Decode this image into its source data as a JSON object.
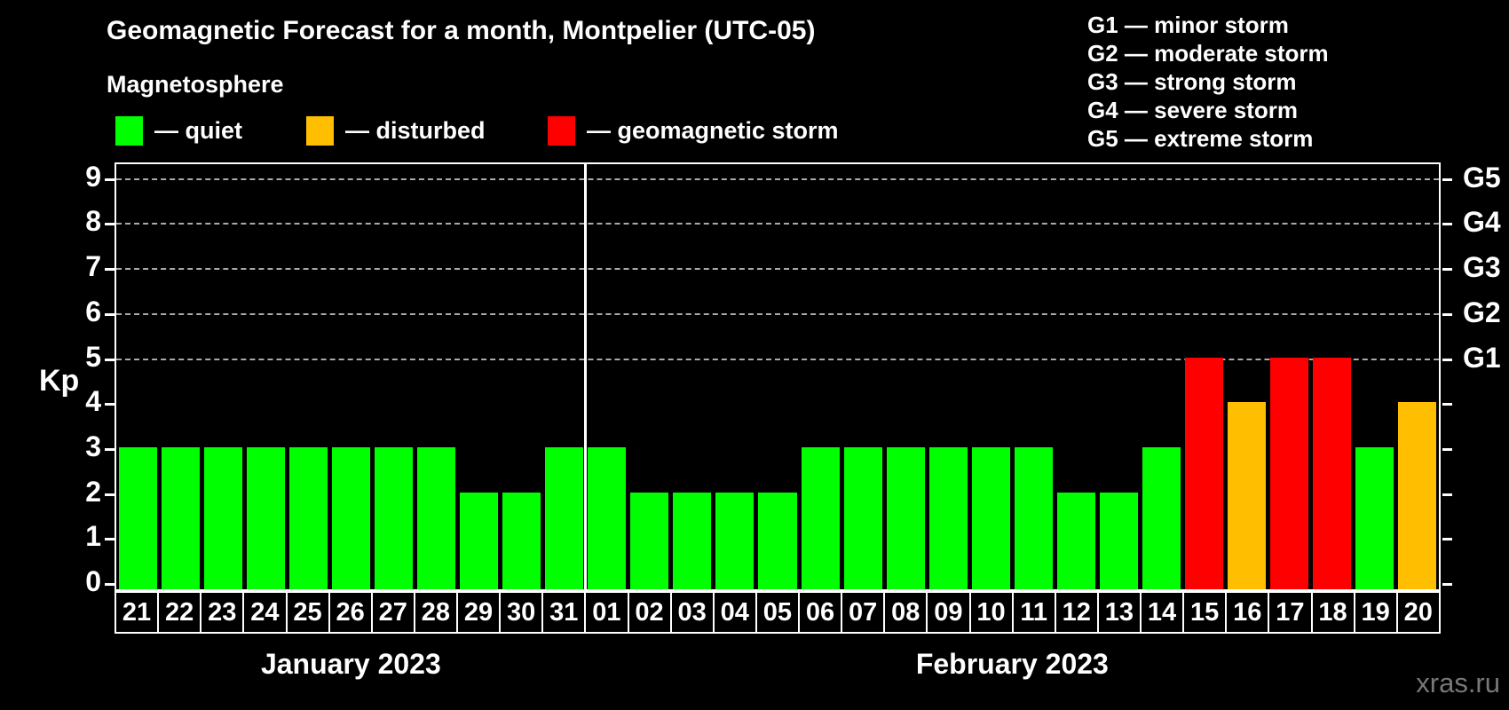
{
  "title": "Geomagnetic Forecast for a month, Montpelier (UTC-05)",
  "subtitle": "Magnetosphere",
  "legend": {
    "items": [
      {
        "key": "quiet",
        "label": "— quiet",
        "color": "#00ff00"
      },
      {
        "key": "disturbed",
        "label": "— disturbed",
        "color": "#ffbf00"
      },
      {
        "key": "storm",
        "label": "— geomagnetic storm",
        "color": "#ff0000"
      }
    ]
  },
  "g_legend": [
    "G1 — minor storm",
    "G2 — moderate storm",
    "G3 — strong storm",
    "G4 — severe storm",
    "G5 — extreme storm"
  ],
  "watermark": "xras.ru",
  "chart_data": {
    "type": "bar",
    "title": "Geomagnetic Forecast for a month, Montpelier (UTC-05)",
    "ylabel": "Kp",
    "ylim": [
      0,
      9
    ],
    "yticks": [
      0,
      1,
      2,
      3,
      4,
      5,
      6,
      7,
      8,
      9
    ],
    "gridlines_at": [
      5,
      6,
      7,
      8,
      9
    ],
    "grid": "dashed-horizontal",
    "right_axis": [
      {
        "value": 5,
        "label": "G1"
      },
      {
        "value": 6,
        "label": "G2"
      },
      {
        "value": 7,
        "label": "G3"
      },
      {
        "value": 8,
        "label": "G4"
      },
      {
        "value": 9,
        "label": "G5"
      }
    ],
    "status_colors": {
      "quiet": "#00ff00",
      "disturbed": "#ffbf00",
      "storm": "#ff0000"
    },
    "months": [
      {
        "label": "January 2023",
        "days": [
          "21",
          "22",
          "23",
          "24",
          "25",
          "26",
          "27",
          "28",
          "29",
          "30",
          "31"
        ],
        "values": [
          3,
          3,
          3,
          3,
          3,
          3,
          3,
          3,
          2,
          2,
          3
        ],
        "statuses": [
          "quiet",
          "quiet",
          "quiet",
          "quiet",
          "quiet",
          "quiet",
          "quiet",
          "quiet",
          "quiet",
          "quiet",
          "quiet"
        ]
      },
      {
        "label": "February 2023",
        "days": [
          "01",
          "02",
          "03",
          "04",
          "05",
          "06",
          "07",
          "08",
          "09",
          "10",
          "11",
          "12",
          "13",
          "14",
          "15",
          "16",
          "17",
          "18",
          "19",
          "20"
        ],
        "values": [
          3,
          2,
          2,
          2,
          2,
          3,
          3,
          3,
          3,
          3,
          3,
          2,
          2,
          3,
          5,
          4,
          5,
          5,
          3,
          4
        ],
        "statuses": [
          "quiet",
          "quiet",
          "quiet",
          "quiet",
          "quiet",
          "quiet",
          "quiet",
          "quiet",
          "quiet",
          "quiet",
          "quiet",
          "quiet",
          "quiet",
          "quiet",
          "storm",
          "disturbed",
          "storm",
          "storm",
          "quiet",
          "disturbed"
        ]
      }
    ]
  }
}
